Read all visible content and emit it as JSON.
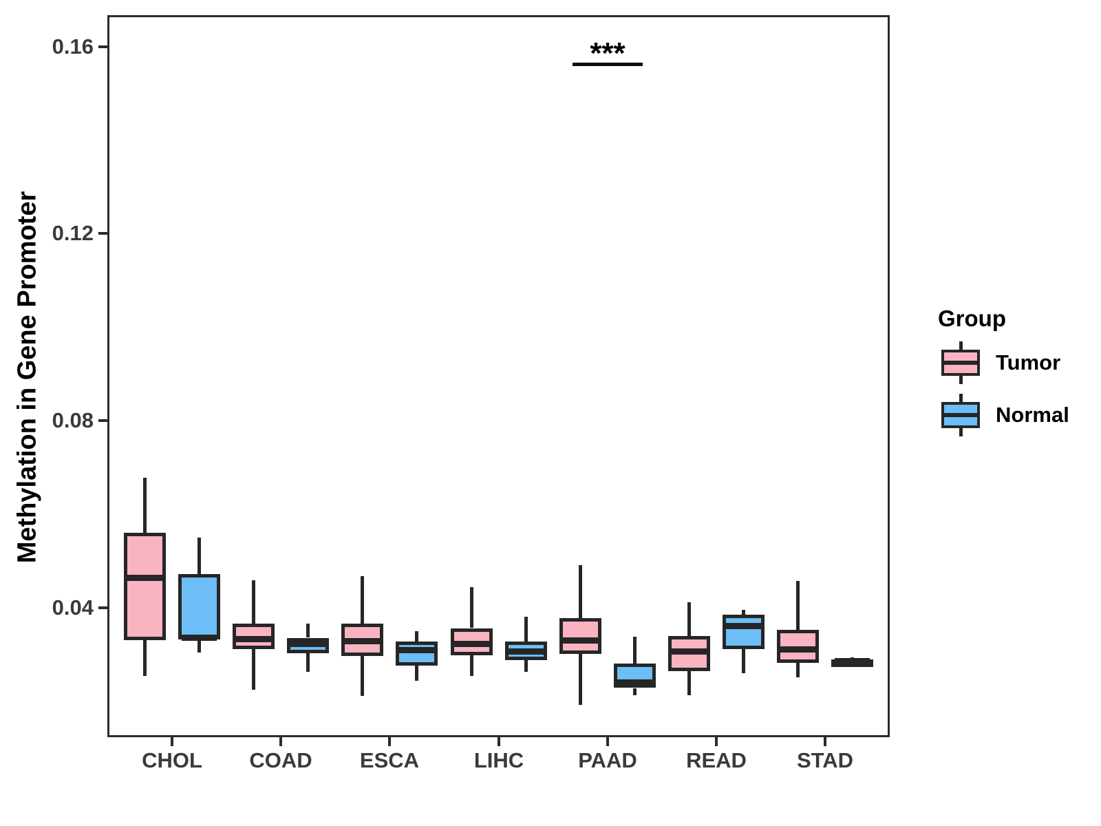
{
  "chart_data": {
    "type": "boxplot",
    "title": "",
    "xlabel": "",
    "ylabel": "Methylation in Gene Promoter",
    "grid": false,
    "legend_position": "right",
    "categories": [
      "CHOL",
      "COAD",
      "ESCA",
      "LIHC",
      "PAAD",
      "READ",
      "STAD"
    ],
    "ylim": [
      0.0124,
      0.1667
    ],
    "y_ticks": [
      {
        "value": 0.04,
        "label": "0.04"
      },
      {
        "value": 0.08,
        "label": "0.08"
      },
      {
        "value": 0.12,
        "label": "0.12"
      },
      {
        "value": 0.16,
        "label": "0.16"
      }
    ],
    "series": [
      {
        "name": "Tumor",
        "fill": "#F9B3C1",
        "stroke": "#262626",
        "boxes": [
          {
            "category": "CHOL",
            "min": 0.0254,
            "q1": 0.0331,
            "median": 0.0464,
            "q3": 0.0561,
            "max": 0.0679
          },
          {
            "category": "COAD",
            "min": 0.0225,
            "q1": 0.0312,
            "median": 0.0334,
            "q3": 0.0367,
            "max": 0.0459
          },
          {
            "category": "ESCA",
            "min": 0.0213,
            "q1": 0.0298,
            "median": 0.0329,
            "q3": 0.0367,
            "max": 0.0468
          },
          {
            "category": "LIHC",
            "min": 0.0254,
            "q1": 0.03,
            "median": 0.0323,
            "q3": 0.0357,
            "max": 0.0444
          },
          {
            "category": "PAAD",
            "min": 0.0193,
            "q1": 0.0302,
            "median": 0.033,
            "q3": 0.0378,
            "max": 0.0492
          },
          {
            "category": "READ",
            "min": 0.0214,
            "q1": 0.0265,
            "median": 0.0307,
            "q3": 0.034,
            "max": 0.0412
          },
          {
            "category": "STAD",
            "min": 0.0251,
            "q1": 0.0284,
            "median": 0.0311,
            "q3": 0.0354,
            "max": 0.0458
          }
        ]
      },
      {
        "name": "Normal",
        "fill": "#6DBEF6",
        "stroke": "#262626",
        "boxes": [
          {
            "category": "CHOL",
            "min": 0.0305,
            "q1": 0.0333,
            "median": 0.0337,
            "q3": 0.0473,
            "max": 0.0551
          },
          {
            "category": "COAD",
            "min": 0.0265,
            "q1": 0.0304,
            "median": 0.0323,
            "q3": 0.0336,
            "max": 0.0366
          },
          {
            "category": "ESCA",
            "min": 0.0244,
            "q1": 0.0277,
            "median": 0.031,
            "q3": 0.0328,
            "max": 0.035
          },
          {
            "category": "LIHC",
            "min": 0.0264,
            "q1": 0.029,
            "median": 0.0307,
            "q3": 0.0329,
            "max": 0.0382
          },
          {
            "category": "PAAD",
            "min": 0.0215,
            "q1": 0.0229,
            "median": 0.0241,
            "q3": 0.0281,
            "max": 0.0339
          },
          {
            "category": "READ",
            "min": 0.0262,
            "q1": 0.0313,
            "median": 0.0362,
            "q3": 0.0386,
            "max": 0.0396
          },
          {
            "category": "STAD",
            "min": 0.0278,
            "q1": 0.0285,
            "median": 0.0287,
            "q3": 0.029,
            "max": 0.0295
          }
        ]
      }
    ],
    "annotation": {
      "text": "***",
      "category": "PAAD",
      "bar_value": 0.1565
    }
  },
  "legend": {
    "title": "Group",
    "items": [
      {
        "label": "Tumor",
        "color": "#F9B3C1"
      },
      {
        "label": "Normal",
        "color": "#6DBEF6"
      }
    ]
  }
}
